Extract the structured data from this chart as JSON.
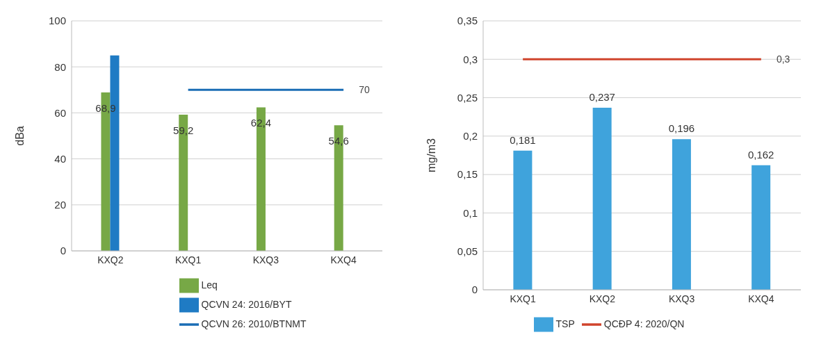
{
  "chart_data": [
    {
      "type": "bar",
      "ylabel": "dBa",
      "categories": [
        "KXQ2",
        "KXQ1",
        "KXQ3",
        "KXQ4"
      ],
      "series": [
        {
          "name": "Leq",
          "color": "#77a846",
          "values": [
            68.9,
            59.2,
            62.4,
            54.6
          ],
          "value_labels": [
            "68,9",
            "59,2",
            "62,4",
            "54,6"
          ]
        },
        {
          "name": "QCVN 24: 2016/BYT",
          "color": "#1f7bc4",
          "values": [
            85,
            null,
            null,
            null
          ]
        },
        {
          "name": "QCVN 26: 2010/BTNMT",
          "type": "line",
          "color": "#1a6db5",
          "values": [
            null,
            70,
            70,
            70
          ],
          "value_labels": [
            null,
            null,
            null,
            "70"
          ]
        }
      ],
      "ylim": [
        0,
        100
      ],
      "yticks": [
        0,
        20,
        40,
        60,
        80,
        100
      ],
      "grid": "y",
      "legend": "bottom",
      "marker": "none"
    },
    {
      "type": "bar",
      "ylabel": "mg/m3",
      "categories": [
        "KXQ1",
        "KXQ2",
        "KXQ3",
        "KXQ4"
      ],
      "series": [
        {
          "name": "TSP",
          "color": "#3fa3dc",
          "values": [
            0.181,
            0.237,
            0.196,
            0.162
          ],
          "value_labels": [
            "0,181",
            "0,237",
            "0,196",
            "0,162"
          ]
        },
        {
          "name": "QCĐP 4: 2020/QN",
          "type": "line",
          "color": "#d0442c",
          "values": [
            0.3,
            0.3,
            0.3,
            0.3
          ],
          "value_labels": [
            null,
            null,
            null,
            "0,3"
          ]
        }
      ],
      "ylim": [
        0,
        0.35
      ],
      "yticks": [
        0,
        {
          "value": 0.05,
          "label": "0,05"
        },
        {
          "value": 0.1,
          "label": "0,1"
        },
        {
          "value": 0.15,
          "label": "0,15"
        },
        {
          "value": 0.2,
          "label": "0,2"
        },
        {
          "value": 0.25,
          "label": "0,25"
        },
        {
          "value": 0.3,
          "label": "0,3"
        },
        {
          "value": 0.35,
          "label": "0,35"
        }
      ],
      "grid": "y",
      "legend": "bottom",
      "marker": "none"
    }
  ]
}
